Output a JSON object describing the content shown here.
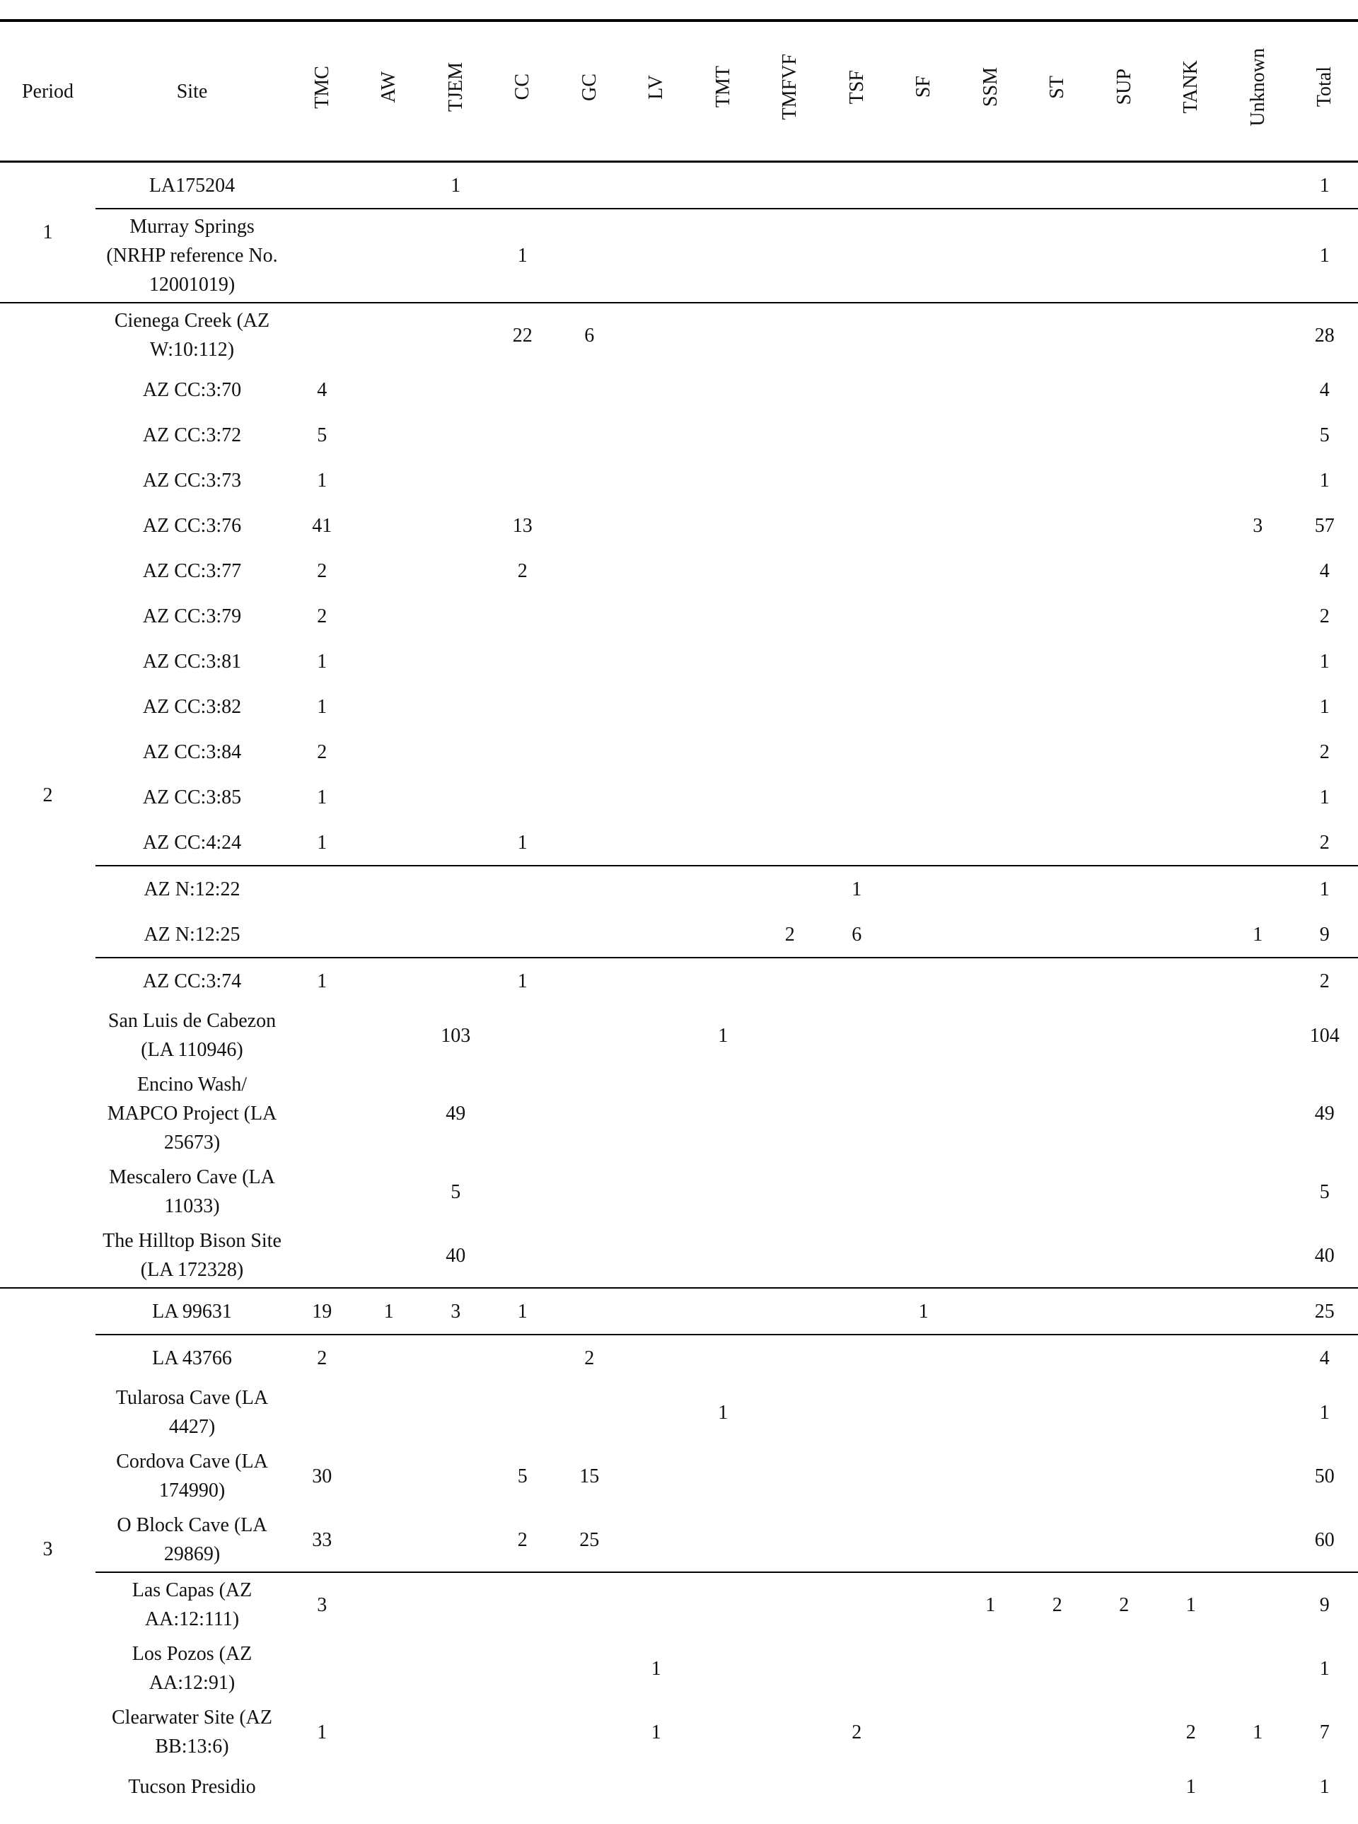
{
  "table": {
    "columns": [
      "Period",
      "Site",
      "TMC",
      "AW",
      "TJEM",
      "CC",
      "GC",
      "LV",
      "TMT",
      "TMFVF",
      "TSF",
      "SF",
      "SSM",
      "ST",
      "SUP",
      "TANK",
      "Unknown",
      "Total"
    ],
    "groups": [
      {
        "period": 1,
        "blocks": [
          [
            {
              "site": "LA175204",
              "cells": [
                null,
                null,
                1,
                null,
                null,
                null,
                null,
                null,
                null,
                null,
                null,
                null,
                null,
                null,
                null,
                1
              ]
            }
          ],
          [
            {
              "site": "Murray Springs (NRHP reference No. 12001019)",
              "cells": [
                null,
                null,
                null,
                1,
                null,
                null,
                null,
                null,
                null,
                null,
                null,
                null,
                null,
                null,
                null,
                1
              ]
            }
          ]
        ]
      },
      {
        "period": 2,
        "blocks": [
          [
            {
              "site": "Cienega Creek (AZ W:10:112)",
              "cells": [
                null,
                null,
                null,
                22,
                6,
                null,
                null,
                null,
                null,
                null,
                null,
                null,
                null,
                null,
                null,
                28
              ]
            },
            {
              "site": "AZ CC:3:70",
              "cells": [
                4,
                null,
                null,
                null,
                null,
                null,
                null,
                null,
                null,
                null,
                null,
                null,
                null,
                null,
                null,
                4
              ]
            },
            {
              "site": "AZ CC:3:72",
              "cells": [
                5,
                null,
                null,
                null,
                null,
                null,
                null,
                null,
                null,
                null,
                null,
                null,
                null,
                null,
                null,
                5
              ]
            },
            {
              "site": "AZ CC:3:73",
              "cells": [
                1,
                null,
                null,
                null,
                null,
                null,
                null,
                null,
                null,
                null,
                null,
                null,
                null,
                null,
                null,
                1
              ]
            },
            {
              "site": "AZ CC:3:76",
              "cells": [
                41,
                null,
                null,
                13,
                null,
                null,
                null,
                null,
                null,
                null,
                null,
                null,
                null,
                null,
                3,
                57
              ]
            },
            {
              "site": "AZ CC:3:77",
              "cells": [
                2,
                null,
                null,
                2,
                null,
                null,
                null,
                null,
                null,
                null,
                null,
                null,
                null,
                null,
                null,
                4
              ]
            },
            {
              "site": "AZ CC:3:79",
              "cells": [
                2,
                null,
                null,
                null,
                null,
                null,
                null,
                null,
                null,
                null,
                null,
                null,
                null,
                null,
                null,
                2
              ]
            },
            {
              "site": "AZ CC:3:81",
              "cells": [
                1,
                null,
                null,
                null,
                null,
                null,
                null,
                null,
                null,
                null,
                null,
                null,
                null,
                null,
                null,
                1
              ]
            },
            {
              "site": "AZ CC:3:82",
              "cells": [
                1,
                null,
                null,
                null,
                null,
                null,
                null,
                null,
                null,
                null,
                null,
                null,
                null,
                null,
                null,
                1
              ]
            },
            {
              "site": "AZ CC:3:84",
              "cells": [
                2,
                null,
                null,
                null,
                null,
                null,
                null,
                null,
                null,
                null,
                null,
                null,
                null,
                null,
                null,
                2
              ]
            },
            {
              "site": "AZ CC:3:85",
              "cells": [
                1,
                null,
                null,
                null,
                null,
                null,
                null,
                null,
                null,
                null,
                null,
                null,
                null,
                null,
                null,
                1
              ]
            },
            {
              "site": "AZ CC:4:24",
              "cells": [
                1,
                null,
                null,
                1,
                null,
                null,
                null,
                null,
                null,
                null,
                null,
                null,
                null,
                null,
                null,
                2
              ]
            }
          ],
          [
            {
              "site": "AZ N:12:22",
              "cells": [
                null,
                null,
                null,
                null,
                null,
                null,
                null,
                null,
                1,
                null,
                null,
                null,
                null,
                null,
                null,
                1
              ]
            },
            {
              "site": "AZ N:12:25",
              "cells": [
                null,
                null,
                null,
                null,
                null,
                null,
                null,
                2,
                6,
                null,
                null,
                null,
                null,
                null,
                1,
                9
              ]
            }
          ],
          [
            {
              "site": "AZ CC:3:74",
              "cells": [
                1,
                null,
                null,
                1,
                null,
                null,
                null,
                null,
                null,
                null,
                null,
                null,
                null,
                null,
                null,
                2
              ]
            },
            {
              "site": "San Luis de Cabezon (LA 110946)",
              "cells": [
                null,
                null,
                103,
                null,
                null,
                null,
                1,
                null,
                null,
                null,
                null,
                null,
                null,
                null,
                null,
                104
              ]
            },
            {
              "site": "Encino Wash/ MAPCO Project (LA 25673)",
              "cells": [
                null,
                null,
                49,
                null,
                null,
                null,
                null,
                null,
                null,
                null,
                null,
                null,
                null,
                null,
                null,
                49
              ]
            },
            {
              "site": "Mescalero Cave (LA 11033)",
              "cells": [
                null,
                null,
                5,
                null,
                null,
                null,
                null,
                null,
                null,
                null,
                null,
                null,
                null,
                null,
                null,
                5
              ]
            },
            {
              "site": "The Hilltop Bison Site (LA 172328)",
              "cells": [
                null,
                null,
                40,
                null,
                null,
                null,
                null,
                null,
                null,
                null,
                null,
                null,
                null,
                null,
                null,
                40
              ]
            }
          ]
        ]
      },
      {
        "period": 3,
        "blocks": [
          [
            {
              "site": "LA 99631",
              "cells": [
                19,
                1,
                3,
                1,
                null,
                null,
                null,
                null,
                null,
                1,
                null,
                null,
                null,
                null,
                null,
                25
              ]
            }
          ],
          [
            {
              "site": "LA 43766",
              "cells": [
                2,
                null,
                null,
                null,
                2,
                null,
                null,
                null,
                null,
                null,
                null,
                null,
                null,
                null,
                null,
                4
              ]
            },
            {
              "site": "Tularosa Cave (LA 4427)",
              "cells": [
                null,
                null,
                null,
                null,
                null,
                null,
                1,
                null,
                null,
                null,
                null,
                null,
                null,
                null,
                null,
                1
              ]
            },
            {
              "site": "Cordova Cave (LA 174990)",
              "cells": [
                30,
                null,
                null,
                5,
                15,
                null,
                null,
                null,
                null,
                null,
                null,
                null,
                null,
                null,
                null,
                50
              ]
            },
            {
              "site": "O Block Cave (LA 29869)",
              "cells": [
                33,
                null,
                null,
                2,
                25,
                null,
                null,
                null,
                null,
                null,
                null,
                null,
                null,
                null,
                null,
                60
              ]
            }
          ],
          [
            {
              "site": "Las Capas (AZ AA:12:111)",
              "cells": [
                3,
                null,
                null,
                null,
                null,
                null,
                null,
                null,
                null,
                null,
                1,
                2,
                2,
                1,
                null,
                9
              ]
            },
            {
              "site": "Los Pozos (AZ AA:12:91)",
              "cells": [
                null,
                null,
                null,
                null,
                null,
                1,
                null,
                null,
                null,
                null,
                null,
                null,
                null,
                null,
                null,
                1
              ]
            },
            {
              "site": "Clearwater Site (AZ BB:13:6)",
              "cells": [
                1,
                null,
                null,
                null,
                null,
                1,
                null,
                null,
                2,
                null,
                null,
                null,
                null,
                2,
                1,
                7
              ]
            },
            {
              "site": "Tucson Presidio",
              "cells": [
                null,
                null,
                null,
                null,
                null,
                null,
                null,
                null,
                null,
                null,
                null,
                null,
                null,
                1,
                null,
                1
              ]
            }
          ]
        ]
      }
    ]
  }
}
